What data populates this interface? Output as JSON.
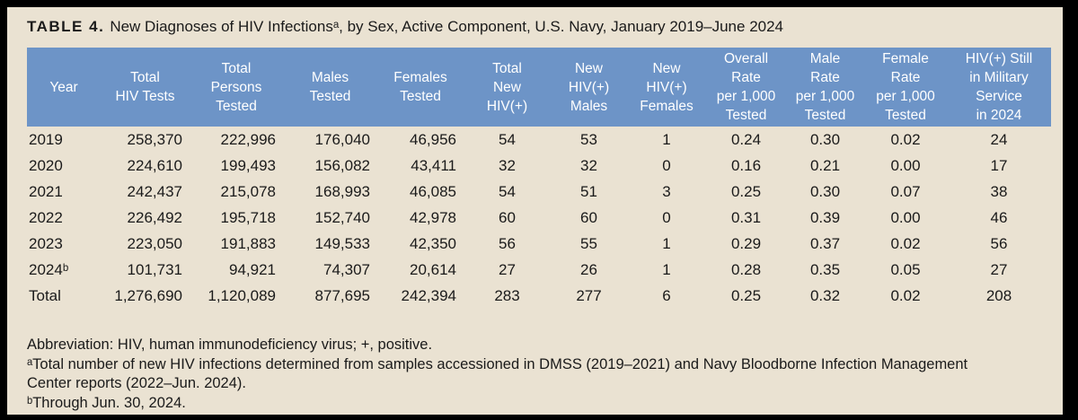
{
  "title": {
    "label": "TABLE 4.",
    "text": "New Diagnoses of HIV Infectionsᵃ, by Sex, Active Component, U.S. Navy, January 2019–June 2024"
  },
  "colors": {
    "page_background": "#EAE2D2",
    "header_background": "#6D94C7",
    "header_text": "#FFFFFF",
    "body_text": "#1A1A1A",
    "frame": "#000000"
  },
  "table": {
    "columns": [
      {
        "label": "Year",
        "align": "left"
      },
      {
        "label": "Total\nHIV Tests",
        "align": "right"
      },
      {
        "label": "Total\nPersons\nTested",
        "align": "right"
      },
      {
        "label": "Males\nTested",
        "align": "right"
      },
      {
        "label": "Females\nTested",
        "align": "right"
      },
      {
        "label": "Total\nNew\nHIV(+)",
        "align": "center"
      },
      {
        "label": "New\nHIV(+)\nMales",
        "align": "center"
      },
      {
        "label": "New\nHIV(+)\nFemales",
        "align": "center"
      },
      {
        "label": "Overall\nRate\nper 1,000\nTested",
        "align": "center"
      },
      {
        "label": "Male\nRate\nper 1,000\nTested",
        "align": "center"
      },
      {
        "label": "Female\nRate\nper 1,000\nTested",
        "align": "center"
      },
      {
        "label": "HIV(+) Still\nin Military\nService\nin 2024",
        "align": "center"
      }
    ],
    "rows": [
      [
        "2019",
        "258,370",
        "222,996",
        "176,040",
        "46,956",
        "54",
        "53",
        "1",
        "0.24",
        "0.30",
        "0.02",
        "24"
      ],
      [
        "2020",
        "224,610",
        "199,493",
        "156,082",
        "43,411",
        "32",
        "32",
        "0",
        "0.16",
        "0.21",
        "0.00",
        "17"
      ],
      [
        "2021",
        "242,437",
        "215,078",
        "168,993",
        "46,085",
        "54",
        "51",
        "3",
        "0.25",
        "0.30",
        "0.07",
        "38"
      ],
      [
        "2022",
        "226,492",
        "195,718",
        "152,740",
        "42,978",
        "60",
        "60",
        "0",
        "0.31",
        "0.39",
        "0.00",
        "46"
      ],
      [
        "2023",
        "223,050",
        "191,883",
        "149,533",
        "42,350",
        "56",
        "55",
        "1",
        "0.29",
        "0.37",
        "0.02",
        "56"
      ],
      [
        "2024ᵇ",
        "101,731",
        "94,921",
        "74,307",
        "20,614",
        "27",
        "26",
        "1",
        "0.28",
        "0.35",
        "0.05",
        "27"
      ],
      [
        "Total",
        "1,276,690",
        "1,120,089",
        "877,695",
        "242,394",
        "283",
        "277",
        "6",
        "0.25",
        "0.32",
        "0.02",
        "208"
      ]
    ]
  },
  "footnotes": [
    "Abbreviation: HIV, human immunodeficiency virus; +, positive.",
    "ᵃTotal number of new HIV infections determined from samples accessioned in DMSS (2019–2021) and Navy Bloodborne Infection Management Center reports (2022–Jun. 2024).",
    "ᵇThrough Jun. 30, 2024."
  ]
}
